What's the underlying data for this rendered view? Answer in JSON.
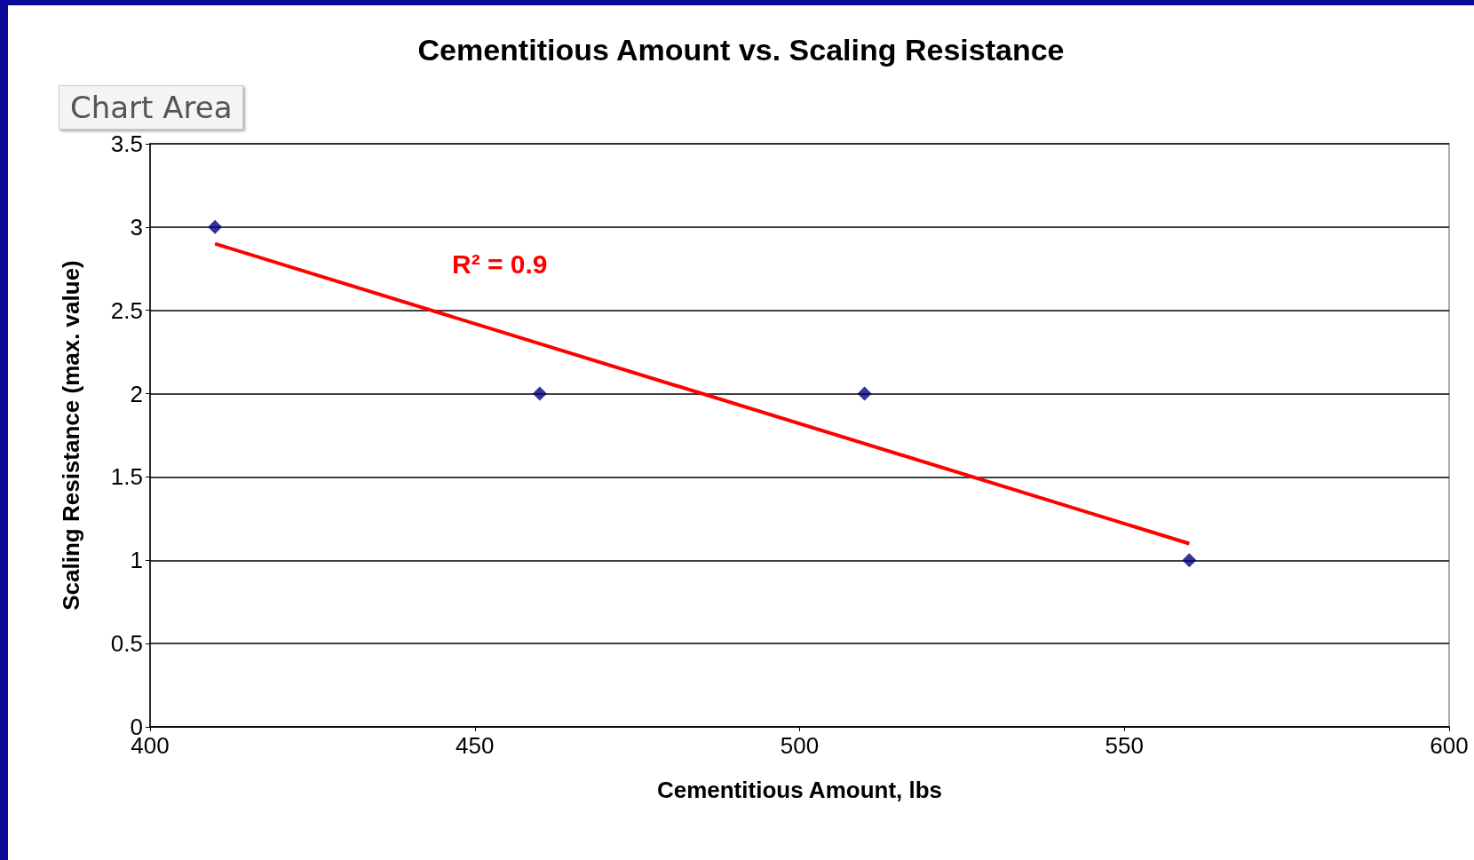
{
  "chart_data": {
    "type": "scatter",
    "title": "Cementitious Amount vs. Scaling Resistance",
    "xlabel": "Cementitious Amount, lbs",
    "ylabel": "Scaling Resistance (max. value)",
    "series": [
      {
        "color": "#000080",
        "x": [
          410,
          460,
          510,
          560
        ],
        "values": [
          3,
          2,
          2,
          1
        ],
        "marker": "diamond"
      },
      {
        "type": "line",
        "color": "#ff0000",
        "x": [
          410,
          560
        ],
        "values": [
          2.9,
          1.1
        ],
        "marker": "none"
      }
    ],
    "xlim": [
      400,
      600
    ],
    "xticks": [
      400,
      450,
      500,
      550,
      600
    ],
    "ylim": [
      0,
      3.5
    ],
    "yticks": [
      0,
      0.5,
      1,
      1.5,
      2,
      2.5,
      3,
      3.5
    ],
    "grid": "y",
    "annotations": [
      "R² = 0.9",
      "Chart Area"
    ]
  }
}
